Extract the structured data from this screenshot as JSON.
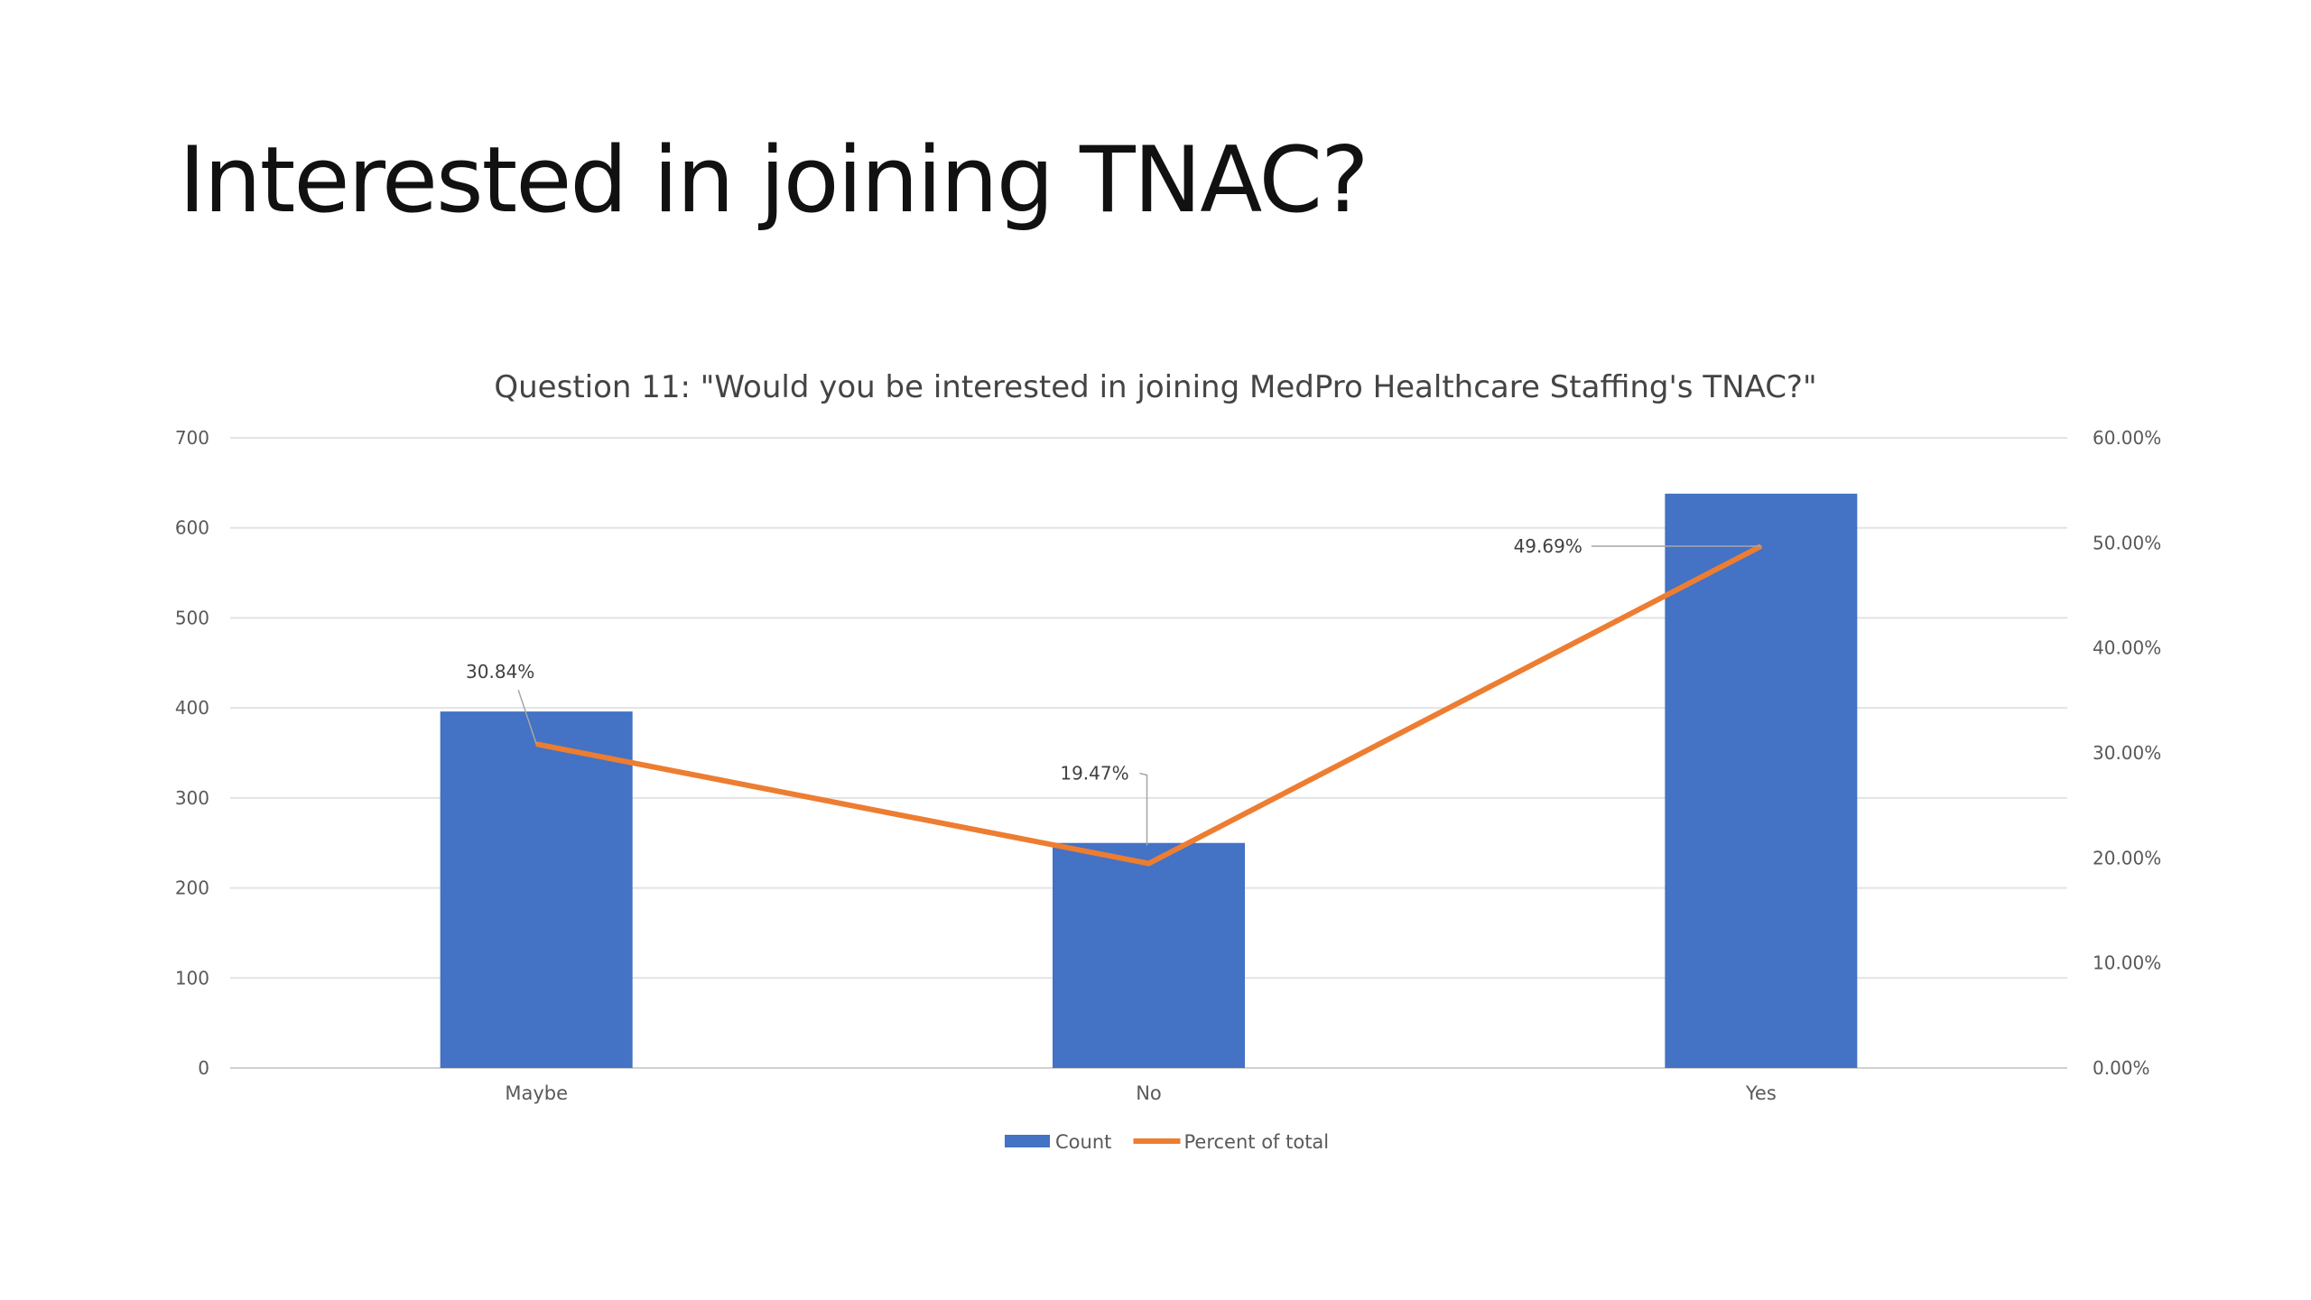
{
  "slide": {
    "title": "Interested in joining TNAC?"
  },
  "chart_data": {
    "type": "bar",
    "title": "Question 11: \"Would you be interested in joining MedPro Healthcare Staffing's TNAC?\"",
    "categories": [
      "Maybe",
      "No",
      "Yes"
    ],
    "series": [
      {
        "name": "Count",
        "type": "bar",
        "axis": "left",
        "color": "#4472C4",
        "values": [
          396,
          250,
          638
        ]
      },
      {
        "name": "Percent of total",
        "type": "line",
        "axis": "right",
        "color": "#ED7D31",
        "values": [
          30.84,
          19.47,
          49.69
        ],
        "labels": [
          "30.84%",
          "19.47%",
          "49.69%"
        ]
      }
    ],
    "y_left": {
      "min": 0,
      "max": 700,
      "step": 100,
      "ticks": [
        "0",
        "100",
        "200",
        "300",
        "400",
        "500",
        "600",
        "700"
      ]
    },
    "y_right": {
      "min": 0,
      "max": 60,
      "step": 10,
      "ticks": [
        "0.00%",
        "10.00%",
        "20.00%",
        "30.00%",
        "40.00%",
        "50.00%",
        "60.00%"
      ]
    },
    "grid": true,
    "legend_position": "bottom",
    "legend": [
      "Count",
      "Percent of total"
    ]
  }
}
